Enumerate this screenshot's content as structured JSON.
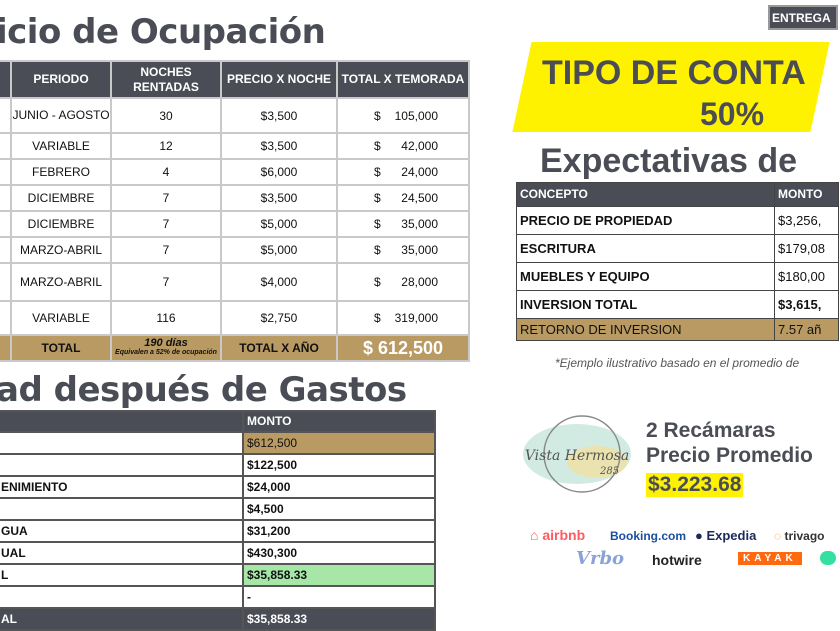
{
  "occupancy": {
    "title": "icio de Ocupación",
    "headers": [
      "PERIODO",
      "NOCHES RENTADAS",
      "PRECIO X NOCHE",
      "TOTAL X TEMORADA"
    ],
    "rows": [
      [
        "JUNIO - AGOSTO",
        "30",
        "$3,500",
        "105,000"
      ],
      [
        "VARIABLE",
        "12",
        "$3,500",
        "42,000"
      ],
      [
        "FEBRERO",
        "4",
        "$6,000",
        "24,000"
      ],
      [
        "DICIEMBRE",
        "7",
        "$3,500",
        "24,500"
      ],
      [
        "DICIEMBRE",
        "7",
        "$5,000",
        "35,000"
      ],
      [
        "MARZO-ABRIL",
        "7",
        "$5,000",
        "35,000"
      ],
      [
        "MARZO-ABRIL",
        "7",
        "$4,000",
        "28,000"
      ],
      [
        "VARIABLE",
        "116",
        "$2,750",
        "319,000"
      ]
    ],
    "currency": "$",
    "total": {
      "label": "TOTAL",
      "days": "190 días",
      "days_note": "Equivalen a 52% de ocupación",
      "year_label": "TOTAL X AÑO",
      "value": "$ 612,500"
    }
  },
  "expenses": {
    "title": "ad después de Gastos",
    "header": "MONTO",
    "rows": [
      [
        "",
        "$612,500"
      ],
      [
        "",
        "$122,500"
      ],
      [
        "ENIMIENTO",
        "$24,000"
      ],
      [
        "",
        "$4,500"
      ],
      [
        "GUA",
        "$31,200"
      ],
      [
        "UAL",
        "$430,300"
      ],
      [
        "L",
        "$35,858.33"
      ],
      [
        "",
        "-"
      ],
      [
        "AL",
        "$35,858.33"
      ]
    ]
  },
  "badge": "ENTREGA",
  "banner": {
    "line1": "TIPO DE CONTA",
    "line2": "50%"
  },
  "expectations": {
    "title": "Expectativas de",
    "headers": [
      "CONCEPTO",
      "MONTO"
    ],
    "rows": [
      [
        "PRECIO DE PROPIEDAD",
        "$3,256,"
      ],
      [
        "ESCRITURA",
        "$179,08"
      ],
      [
        "MUEBLES Y EQUIPO",
        "$180,00"
      ],
      [
        "INVERSION TOTAL",
        "$3,615,"
      ],
      [
        "RETORNO DE INVERSION",
        "7.57 añ"
      ]
    ]
  },
  "footnote": "*Ejemplo ilustrativo basado en el promedio de",
  "brand": {
    "logo_text": "Vista Hermosa 285"
  },
  "unit": {
    "bedrooms": "2 Recámaras",
    "price_label": "Precio Promedio",
    "price": "$3.223.68"
  },
  "platforms": [
    "airbnb",
    "Booking.com",
    "Expedia",
    "trivago",
    "Vrbo",
    "hotwire",
    "KAYAK"
  ],
  "colors": {
    "dark": "#4a4d55",
    "gold": "#b89a62",
    "yellow": "#fff200",
    "green": "#a6e7a8"
  }
}
